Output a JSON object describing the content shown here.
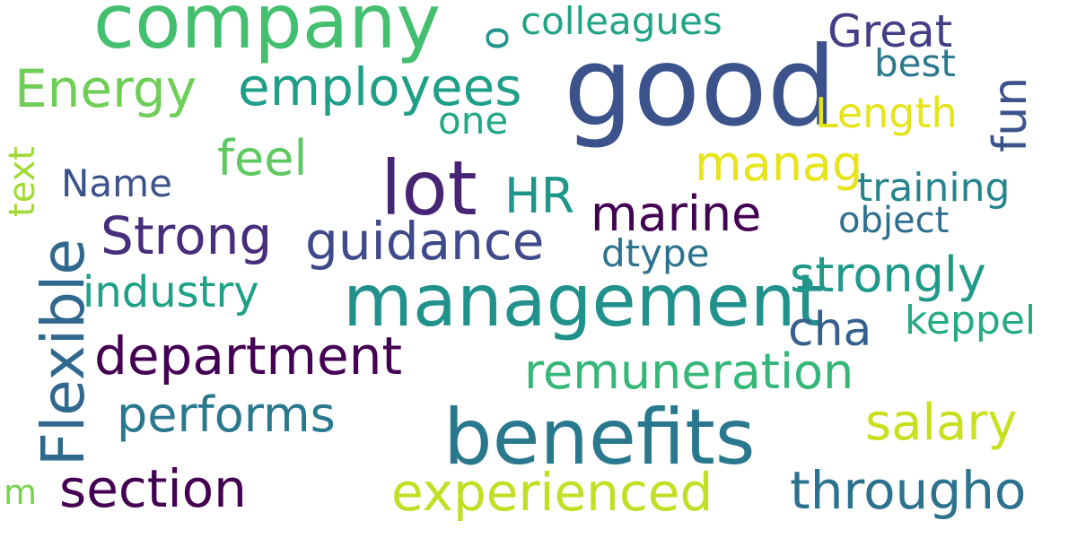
{
  "words": [
    {
      "text": "good",
      "color": "#3b528b"
    },
    {
      "text": "company",
      "color": "#44bf70"
    },
    {
      "text": "management",
      "color": "#21918c"
    },
    {
      "text": "benefits",
      "color": "#2a788e"
    },
    {
      "text": "lot",
      "color": "#482475"
    },
    {
      "text": "Flexible",
      "color": "#31688e"
    },
    {
      "text": "employees",
      "color": "#1f9e89"
    },
    {
      "text": "Energy",
      "color": "#6ece58"
    },
    {
      "text": "Strong",
      "color": "#472d7b"
    },
    {
      "text": "guidance",
      "color": "#3e4a89"
    },
    {
      "text": "department",
      "color": "#440154"
    },
    {
      "text": "section",
      "color": "#440154"
    },
    {
      "text": "experienced",
      "color": "#c2df23"
    },
    {
      "text": "througho",
      "color": "#2c728e"
    },
    {
      "text": "remuneration",
      "color": "#35b779"
    },
    {
      "text": "strongly",
      "color": "#1f9a8a"
    },
    {
      "text": "salary",
      "color": "#c8e020"
    },
    {
      "text": "marine",
      "color": "#440154"
    },
    {
      "text": "performs",
      "color": "#2a788e"
    },
    {
      "text": "industry",
      "color": "#1fa187"
    },
    {
      "text": "manag",
      "color": "#e7e419"
    },
    {
      "text": "cha",
      "color": "#355f8d"
    },
    {
      "text": "feel",
      "color": "#5ec962"
    },
    {
      "text": "HR",
      "color": "#1f968b"
    },
    {
      "text": "Great",
      "color": "#433e85"
    },
    {
      "text": "fun",
      "color": "#3b528b"
    },
    {
      "text": "keppel",
      "color": "#25ab82"
    },
    {
      "text": "training",
      "color": "#25858e"
    },
    {
      "text": "colleagues",
      "color": "#20a386"
    },
    {
      "text": "Length",
      "color": "#e5e419"
    },
    {
      "text": "best",
      "color": "#2a788e"
    },
    {
      "text": "object",
      "color": "#2e6e8e"
    },
    {
      "text": "dtype",
      "color": "#2c728e"
    },
    {
      "text": "one",
      "color": "#22a884"
    },
    {
      "text": "Name",
      "color": "#3b528b"
    },
    {
      "text": "o",
      "color": "#1f958b"
    },
    {
      "text": "text",
      "color": "#a2da37"
    },
    {
      "text": "m",
      "color": "#7ad151"
    }
  ]
}
